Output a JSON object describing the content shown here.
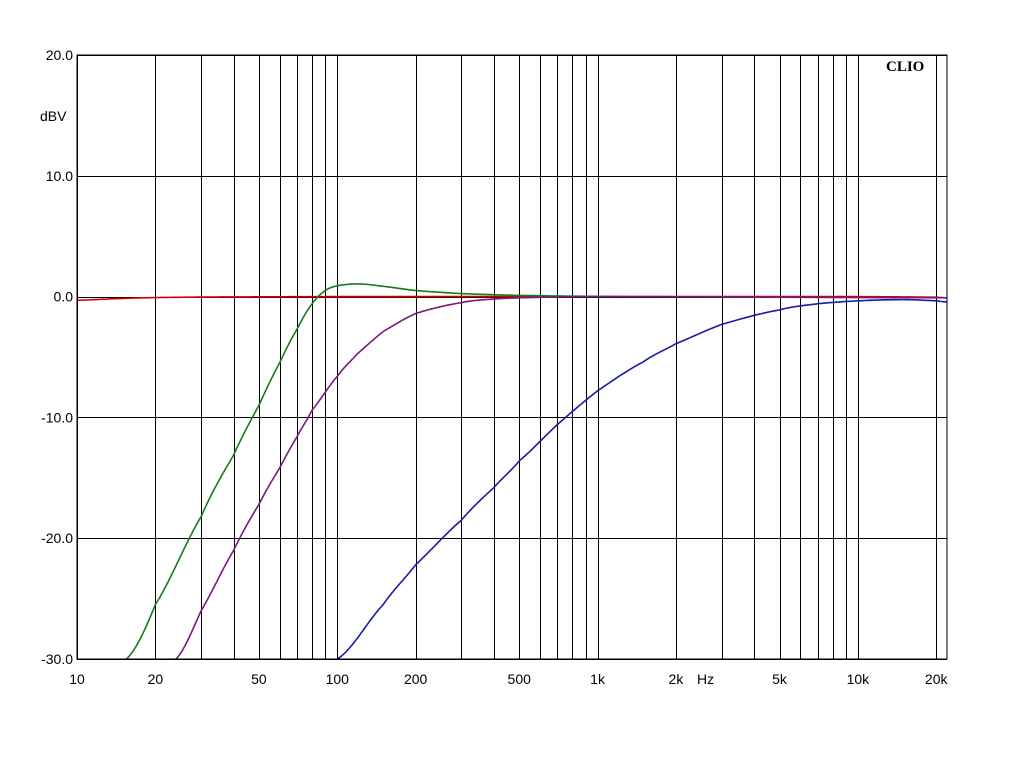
{
  "chart_data": {
    "type": "line",
    "brand": "CLIO",
    "ylabel": "dBV",
    "xlabel": "Hz",
    "xscale": "log",
    "xlim": [
      10,
      22000
    ],
    "ylim": [
      -30,
      20
    ],
    "grid": true,
    "y_ticks": [
      {
        "value": 20,
        "label": "20.0"
      },
      {
        "value": 10,
        "label": "10.0"
      },
      {
        "value": 0,
        "label": "0.0"
      },
      {
        "value": -10,
        "label": "-10.0"
      },
      {
        "value": -20,
        "label": "-20.0"
      },
      {
        "value": -30,
        "label": "-30.0"
      }
    ],
    "x_ticks": [
      {
        "value": 10,
        "label": "10"
      },
      {
        "value": 20,
        "label": "20"
      },
      {
        "value": 50,
        "label": "50"
      },
      {
        "value": 100,
        "label": "100"
      },
      {
        "value": 200,
        "label": "200"
      },
      {
        "value": 500,
        "label": "500"
      },
      {
        "value": 1000,
        "label": "1k"
      },
      {
        "value": 2000,
        "label": "2k"
      },
      {
        "value": 5000,
        "label": "5k"
      },
      {
        "value": 10000,
        "label": "10k"
      },
      {
        "value": 20000,
        "label": "20k"
      }
    ],
    "x_gridlines": [
      10,
      20,
      30,
      40,
      50,
      60,
      70,
      80,
      90,
      100,
      200,
      300,
      400,
      500,
      600,
      700,
      800,
      900,
      1000,
      2000,
      3000,
      4000,
      5000,
      6000,
      7000,
      8000,
      9000,
      10000,
      20000
    ],
    "series": [
      {
        "color": "#cc0000",
        "points": [
          [
            10,
            -0.3
          ],
          [
            15,
            -0.15
          ],
          [
            20,
            -0.08
          ],
          [
            30,
            -0.04
          ],
          [
            50,
            -0.02
          ],
          [
            100,
            0
          ],
          [
            1000,
            0
          ],
          [
            10000,
            0
          ],
          [
            20000,
            -0.05
          ],
          [
            22000,
            -0.1
          ]
        ]
      },
      {
        "color": "#1a7a1a",
        "points": [
          [
            15.5,
            -30
          ],
          [
            20,
            -25.5
          ],
          [
            30,
            -18.2
          ],
          [
            40,
            -13.1
          ],
          [
            50,
            -9.0
          ],
          [
            60,
            -5.5
          ],
          [
            70,
            -2.7
          ],
          [
            80,
            -0.6
          ],
          [
            90,
            0.5
          ],
          [
            100,
            0.9
          ],
          [
            120,
            1.05
          ],
          [
            150,
            0.85
          ],
          [
            200,
            0.5
          ],
          [
            300,
            0.25
          ],
          [
            500,
            0.1
          ],
          [
            1000,
            0.02
          ],
          [
            1300,
            0
          ]
        ]
      },
      {
        "color": "#7a1a7a",
        "points": [
          [
            24,
            -30
          ],
          [
            30,
            -26
          ],
          [
            40,
            -21
          ],
          [
            50,
            -17.2
          ],
          [
            60,
            -14.2
          ],
          [
            70,
            -11.6
          ],
          [
            80,
            -9.4
          ],
          [
            100,
            -6.6
          ],
          [
            120,
            -4.7
          ],
          [
            150,
            -2.9
          ],
          [
            200,
            -1.4
          ],
          [
            300,
            -0.5
          ],
          [
            400,
            -0.2
          ],
          [
            500,
            -0.1
          ],
          [
            700,
            -0.03
          ],
          [
            1000,
            0
          ],
          [
            22000,
            -0.1
          ]
        ]
      },
      {
        "color": "#1a1aaa",
        "points": [
          [
            100,
            -30
          ],
          [
            150,
            -25.5
          ],
          [
            200,
            -22.2
          ],
          [
            300,
            -18.5
          ],
          [
            400,
            -15.8
          ],
          [
            500,
            -13.6
          ],
          [
            700,
            -10.6
          ],
          [
            1000,
            -7.8
          ],
          [
            1500,
            -5.4
          ],
          [
            2000,
            -3.9
          ],
          [
            3000,
            -2.3
          ],
          [
            5000,
            -1.1
          ],
          [
            7000,
            -0.6
          ],
          [
            10000,
            -0.35
          ],
          [
            15000,
            -0.25
          ],
          [
            20000,
            -0.35
          ],
          [
            22000,
            -0.45
          ]
        ]
      }
    ]
  }
}
